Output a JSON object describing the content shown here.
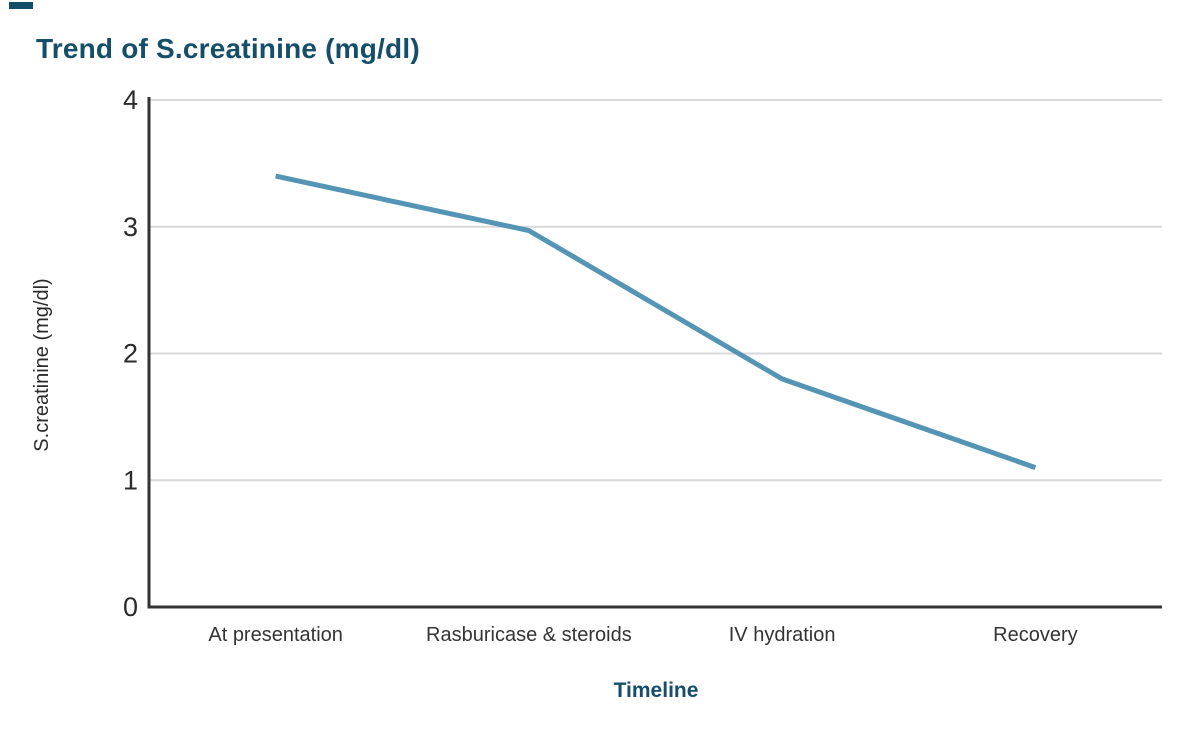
{
  "chart_data": {
    "type": "line",
    "title": "Trend of S.creatinine (mg/dl)",
    "xlabel": "Timeline",
    "ylabel": "S.creatinine (mg/dl)",
    "categories": [
      "At presentation",
      "Rasburicase & steroids",
      "IV hydration",
      "Recovery"
    ],
    "series": [
      {
        "name": "S.creatinine",
        "values": [
          3.4,
          2.97,
          1.8,
          1.1
        ]
      }
    ],
    "ylim": [
      0,
      4
    ],
    "yticks": [
      0,
      1,
      2,
      3,
      4
    ],
    "grid": "horizontal-only",
    "legend": "none"
  },
  "colors": {
    "accent_teal": "#144e68",
    "series_line": "#5494b4",
    "gridline": "#d9d9d9",
    "axis": "#333333",
    "tick_text": "#2b2b2b",
    "category_text": "#343434"
  }
}
